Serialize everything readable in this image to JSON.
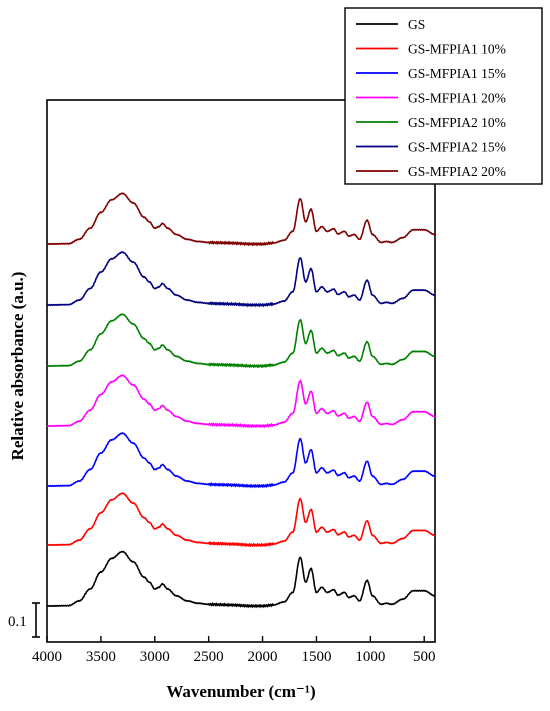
{
  "chart_data": {
    "type": "line",
    "xlabel": "Wavenumber (cm⁻¹)",
    "ylabel": "Relative absorbance (a.u.)",
    "xlim": [
      4000,
      400
    ],
    "x_reversed": true,
    "x_ticks": [
      4000,
      3500,
      3000,
      2500,
      2000,
      1500,
      1000,
      500
    ],
    "y_ticks_shown": false,
    "scale_bar": {
      "label": "0.1",
      "value": 0.1
    },
    "legend_position": "top-right",
    "stacked_offsets": true,
    "series": [
      {
        "name": "GS",
        "color": "#000000"
      },
      {
        "name": "GS-MFPIA1 10%",
        "color": "#ff0000"
      },
      {
        "name": "GS-MFPIA1 15%",
        "color": "#0000ff"
      },
      {
        "name": "GS-MFPIA1 20%",
        "color": "#ff00ff"
      },
      {
        "name": "GS-MFPIA2 10%",
        "color": "#008000"
      },
      {
        "name": "GS-MFPIA2 15%",
        "color": "#000080"
      },
      {
        "name": "GS-MFPIA2 20%",
        "color": "#800000"
      }
    ],
    "base_spectrum": [
      [
        4000,
        0.0
      ],
      [
        3800,
        0.001
      ],
      [
        3700,
        0.015
      ],
      [
        3600,
        0.05
      ],
      [
        3500,
        0.1
      ],
      [
        3400,
        0.14
      ],
      [
        3300,
        0.16
      ],
      [
        3200,
        0.13
      ],
      [
        3100,
        0.085
      ],
      [
        3050,
        0.07
      ],
      [
        3000,
        0.05
      ],
      [
        2960,
        0.055
      ],
      [
        2930,
        0.065
      ],
      [
        2880,
        0.05
      ],
      [
        2800,
        0.03
      ],
      [
        2700,
        0.015
      ],
      [
        2600,
        0.008
      ],
      [
        2500,
        0.005
      ],
      [
        2400,
        0.004
      ],
      [
        2300,
        0.003
      ],
      [
        2100,
        0.0
      ],
      [
        2000,
        0.0
      ],
      [
        1900,
        0.003
      ],
      [
        1800,
        0.012
      ],
      [
        1720,
        0.04
      ],
      [
        1650,
        0.143
      ],
      [
        1600,
        0.07
      ],
      [
        1550,
        0.11
      ],
      [
        1500,
        0.04
      ],
      [
        1450,
        0.055
      ],
      [
        1400,
        0.04
      ],
      [
        1340,
        0.048
      ],
      [
        1300,
        0.032
      ],
      [
        1240,
        0.04
      ],
      [
        1200,
        0.025
      ],
      [
        1150,
        0.03
      ],
      [
        1100,
        0.015
      ],
      [
        1030,
        0.075
      ],
      [
        980,
        0.03
      ],
      [
        900,
        0.005
      ],
      [
        850,
        0.008
      ],
      [
        800,
        0.005
      ],
      [
        700,
        0.02
      ],
      [
        600,
        0.045
      ],
      [
        500,
        0.045
      ],
      [
        400,
        0.03
      ]
    ]
  }
}
